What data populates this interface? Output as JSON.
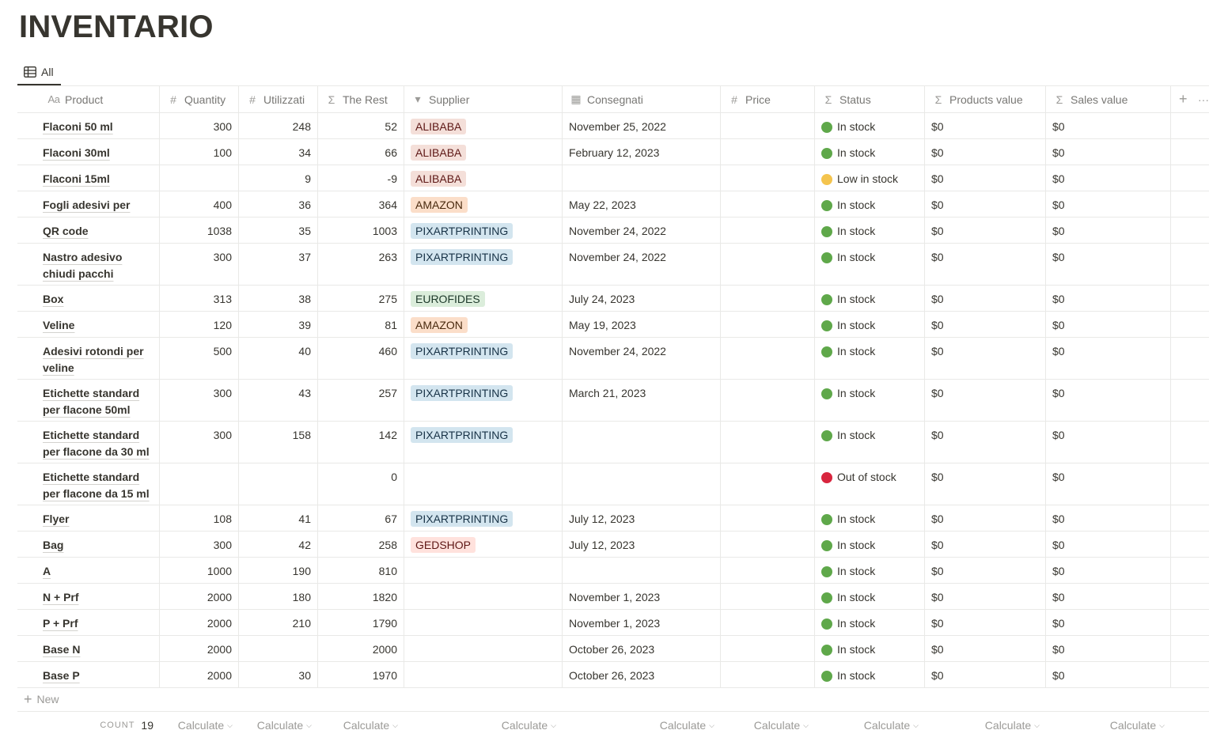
{
  "page_title": "INVENTARIO",
  "tab": {
    "label": "All",
    "icon": "table-icon"
  },
  "columns": [
    {
      "icon": "Aa",
      "label": "Product"
    },
    {
      "icon": "#",
      "label": "Quantity"
    },
    {
      "icon": "#",
      "label": "Utilizzati"
    },
    {
      "icon": "Σ",
      "label": "The Rest"
    },
    {
      "icon": "▾",
      "label": "Supplier"
    },
    {
      "icon": "▦",
      "label": "Consegnati"
    },
    {
      "icon": "#",
      "label": "Price"
    },
    {
      "icon": "Σ",
      "label": "Status"
    },
    {
      "icon": "Σ",
      "label": "Products value"
    },
    {
      "icon": "Σ",
      "label": "Sales value"
    }
  ],
  "add_column_icon": "+",
  "more_icon": "···",
  "status_colors": {
    "In stock": "#5fa84a",
    "Low in stock": "#f4c44e",
    "Out of stock": "#d8253e"
  },
  "supplier_colors": {
    "ALIBABA": {
      "bg": "#f4dfd9",
      "fg": "#5d1715"
    },
    "AMAZON": {
      "bg": "#fbdec9",
      "fg": "#49290e"
    },
    "PIXARTPRINTING": {
      "bg": "#d3e5ef",
      "fg": "#183347"
    },
    "EUROFIDES": {
      "bg": "#dbeddb",
      "fg": "#1c3829"
    },
    "GEDSHOP": {
      "bg": "#ffe2dd",
      "fg": "#5d1715"
    }
  },
  "rows": [
    {
      "product": "Flaconi 50 ml",
      "quantity": "300",
      "utilizzati": "248",
      "rest": "52",
      "supplier": "ALIBABA",
      "consegnati": "November 25, 2022",
      "price": "",
      "status": "In stock",
      "products_value": "$0",
      "sales_value": "$0"
    },
    {
      "product": "Flaconi 30ml",
      "quantity": "100",
      "utilizzati": "34",
      "rest": "66",
      "supplier": "ALIBABA",
      "consegnati": "February 12, 2023",
      "price": "",
      "status": "In stock",
      "products_value": "$0",
      "sales_value": "$0"
    },
    {
      "product": "Flaconi 15ml",
      "quantity": "",
      "utilizzati": "9",
      "rest": "-9",
      "supplier": "ALIBABA",
      "consegnati": "",
      "price": "",
      "status": "Low in stock",
      "products_value": "$0",
      "sales_value": "$0"
    },
    {
      "product": "Fogli adesivi per flyer",
      "quantity": "400",
      "utilizzati": "36",
      "rest": "364",
      "supplier": "AMAZON",
      "consegnati": "May 22, 2023",
      "price": "",
      "status": "In stock",
      "products_value": "$0",
      "sales_value": "$0"
    },
    {
      "product": "QR code",
      "quantity": "1038",
      "utilizzati": "35",
      "rest": "1003",
      "supplier": "PIXARTPRINTING",
      "consegnati": "November 24, 2022",
      "price": "",
      "status": "In stock",
      "products_value": "$0",
      "sales_value": "$0"
    },
    {
      "product": "Nastro adesivo chiudi pacchi",
      "quantity": "300",
      "utilizzati": "37",
      "rest": "263",
      "supplier": "PIXARTPRINTING",
      "consegnati": "November 24, 2022",
      "price": "",
      "status": "In stock",
      "products_value": "$0",
      "sales_value": "$0"
    },
    {
      "product": "Box",
      "quantity": "313",
      "utilizzati": "38",
      "rest": "275",
      "supplier": "EUROFIDES",
      "consegnati": "July 24, 2023",
      "price": "",
      "status": "In stock",
      "products_value": "$0",
      "sales_value": "$0"
    },
    {
      "product": "Veline",
      "quantity": "120",
      "utilizzati": "39",
      "rest": "81",
      "supplier": "AMAZON",
      "consegnati": "May 19, 2023",
      "price": "",
      "status": "In stock",
      "products_value": "$0",
      "sales_value": "$0"
    },
    {
      "product": "Adesivi rotondi per veline",
      "quantity": "500",
      "utilizzati": "40",
      "rest": "460",
      "supplier": "PIXARTPRINTING",
      "consegnati": "November 24, 2022",
      "price": "",
      "status": "In stock",
      "products_value": "$0",
      "sales_value": "$0"
    },
    {
      "product": "Etichette standard per flacone 50ml",
      "quantity": "300",
      "utilizzati": "43",
      "rest": "257",
      "supplier": "PIXARTPRINTING",
      "consegnati": "March 21, 2023",
      "price": "",
      "status": "In stock",
      "products_value": "$0",
      "sales_value": "$0"
    },
    {
      "product": "Etichette standard per flacone da 30 ml",
      "quantity": "300",
      "utilizzati": "158",
      "rest": "142",
      "supplier": "PIXARTPRINTING",
      "consegnati": "",
      "price": "",
      "status": "In stock",
      "products_value": "$0",
      "sales_value": "$0"
    },
    {
      "product": "Etichette standard per flacone da 15 ml",
      "quantity": "",
      "utilizzati": "",
      "rest": "0",
      "supplier": "",
      "consegnati": "",
      "price": "",
      "status": "Out of stock",
      "products_value": "$0",
      "sales_value": "$0"
    },
    {
      "product": "Flyer",
      "quantity": "108",
      "utilizzati": "41",
      "rest": "67",
      "supplier": "PIXARTPRINTING",
      "consegnati": "July 12, 2023",
      "price": "",
      "status": "In stock",
      "products_value": "$0",
      "sales_value": "$0"
    },
    {
      "product": "Bag",
      "quantity": "300",
      "utilizzati": "42",
      "rest": "258",
      "supplier": "GEDSHOP",
      "consegnati": "July 12, 2023",
      "price": "",
      "status": "In stock",
      "products_value": "$0",
      "sales_value": "$0"
    },
    {
      "product": "A",
      "quantity": "1000",
      "utilizzati": "190",
      "rest": "810",
      "supplier": "",
      "consegnati": "",
      "price": "",
      "status": "In stock",
      "products_value": "$0",
      "sales_value": "$0"
    },
    {
      "product": "N + Prf",
      "quantity": "2000",
      "utilizzati": "180",
      "rest": "1820",
      "supplier": "",
      "consegnati": "November 1, 2023",
      "price": "",
      "status": "In stock",
      "products_value": "$0",
      "sales_value": "$0"
    },
    {
      "product": "P + Prf",
      "quantity": "2000",
      "utilizzati": "210",
      "rest": "1790",
      "supplier": "",
      "consegnati": "November 1, 2023",
      "price": "",
      "status": "In stock",
      "products_value": "$0",
      "sales_value": "$0"
    },
    {
      "product": "Base N",
      "quantity": "2000",
      "utilizzati": "",
      "rest": "2000",
      "supplier": "",
      "consegnati": "October 26, 2023",
      "price": "",
      "status": "In stock",
      "products_value": "$0",
      "sales_value": "$0"
    },
    {
      "product": "Base P",
      "quantity": "2000",
      "utilizzati": "30",
      "rest": "1970",
      "supplier": "",
      "consegnati": "October 26, 2023",
      "price": "",
      "status": "In stock",
      "products_value": "$0",
      "sales_value": "$0"
    }
  ],
  "new_row_label": "New",
  "footer": {
    "count_label": "COUNT",
    "count_value": "19",
    "calculate_label": "Calculate"
  }
}
